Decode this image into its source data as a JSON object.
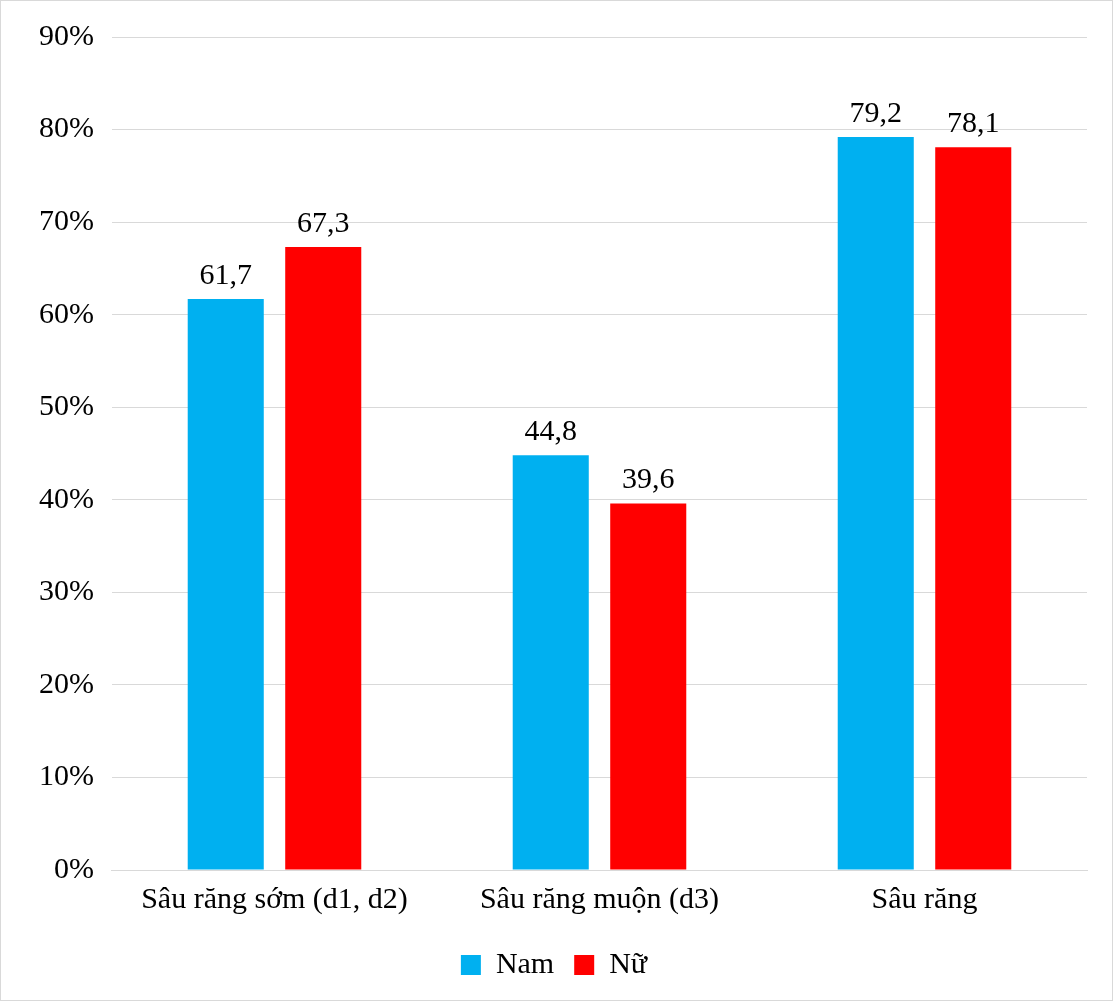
{
  "chart_data": {
    "type": "bar",
    "categories": [
      "Sâu răng sớm (d1, d2)",
      "Sâu răng muộn (d3)",
      "Sâu răng"
    ],
    "series": [
      {
        "name": "Nam",
        "color": "#00b0f0",
        "values": [
          61.7,
          44.8,
          79.2
        ],
        "value_labels": [
          "61,7",
          "44,8",
          "79,2"
        ]
      },
      {
        "name": "Nữ",
        "color": "#ff0000",
        "values": [
          67.3,
          39.6,
          78.1
        ],
        "value_labels": [
          "67,3",
          "39,6",
          "78,1"
        ]
      }
    ],
    "ylim": [
      0,
      90
    ],
    "yticks": [
      {
        "value": 0,
        "label": "0%"
      },
      {
        "value": 10,
        "label": "10%"
      },
      {
        "value": 20,
        "label": "20%"
      },
      {
        "value": 30,
        "label": "30%"
      },
      {
        "value": 40,
        "label": "40%"
      },
      {
        "value": 50,
        "label": "50%"
      },
      {
        "value": 60,
        "label": "60%"
      },
      {
        "value": 70,
        "label": "70%"
      },
      {
        "value": 80,
        "label": "80%"
      },
      {
        "value": 90,
        "label": "90%"
      }
    ],
    "grid": "y",
    "legend": "bottom"
  }
}
